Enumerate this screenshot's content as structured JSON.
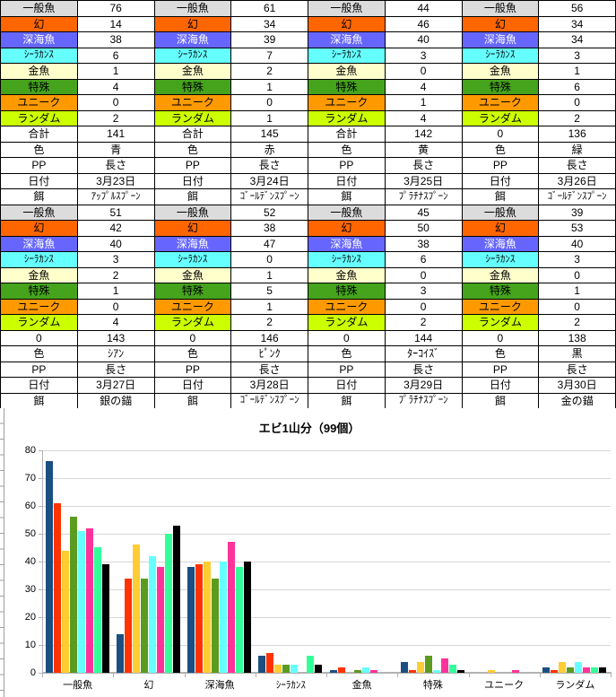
{
  "table": {
    "row_labels": [
      "一般魚",
      "幻",
      "深海魚",
      "ｼｰﾗｶﾝｽ",
      "金魚",
      "特殊",
      "ユニーク",
      "ランダム"
    ],
    "row_label_colors": [
      "#dcdcdc",
      "#ff6600",
      "#6666ff",
      "#66ffff",
      "#ffffcc",
      "#45a31c",
      "#ff9900",
      "#ccff00"
    ],
    "row_label_text_colors": [
      "#000000",
      "#000000",
      "#ffffff",
      "#000000",
      "#000000",
      "#000000",
      "#000000",
      "#000000"
    ],
    "color_label": "色",
    "pp_label": "PP",
    "date_label": "日付",
    "bait_label": "餌",
    "days": [
      {
        "counts": [
          76,
          14,
          38,
          6,
          1,
          4,
          0,
          2
        ],
        "total_label": "合計",
        "total": "141",
        "color_value": "青",
        "pp_value": "長さ",
        "date": "3月23日",
        "bait": "ｱｯﾌﾟﾙｽﾌﾟｰﾝ"
      },
      {
        "counts": [
          61,
          34,
          39,
          7,
          2,
          1,
          0,
          1
        ],
        "total_label": "合計",
        "total": "145",
        "color_value": "赤",
        "pp_value": "長さ",
        "date": "3月24日",
        "bait": "ｺﾞｰﾙﾃﾞﾝｽﾌﾟｰﾝ"
      },
      {
        "counts": [
          44,
          46,
          40,
          3,
          0,
          4,
          1,
          4
        ],
        "total_label": "合計",
        "total": "142",
        "color_value": "黄",
        "pp_value": "長さ",
        "date": "3月25日",
        "bait": "ﾌﾟﾗﾁﾅｽﾌﾟｰﾝ"
      },
      {
        "counts": [
          56,
          34,
          34,
          3,
          1,
          6,
          0,
          2
        ],
        "total_label": "0",
        "total": "136",
        "color_value": "緑",
        "pp_value": "長さ",
        "date": "3月26日",
        "bait": "ｺﾞｰﾙﾃﾞﾝｽﾌﾟｰﾝ"
      },
      {
        "counts": [
          51,
          42,
          40,
          3,
          2,
          1,
          0,
          4
        ],
        "total_label": "0",
        "total": "143",
        "color_value": "ｼｱﾝ",
        "pp_value": "長さ",
        "date": "3月27日",
        "bait": "銀の錨"
      },
      {
        "counts": [
          52,
          38,
          47,
          0,
          1,
          5,
          1,
          2
        ],
        "total_label": "0",
        "total": "146",
        "color_value": "ﾋﾟﾝｸ",
        "pp_value": "長さ",
        "date": "3月28日",
        "bait": "ｺﾞｰﾙﾃﾞﾝｽﾌﾟｰﾝ"
      },
      {
        "counts": [
          45,
          50,
          38,
          6,
          0,
          3,
          0,
          2
        ],
        "total_label": "0",
        "total": "144",
        "color_value": "ﾀｰｺｲｽﾞ",
        "pp_value": "長さ",
        "date": "3月29日",
        "bait": "ﾌﾟﾗﾁﾅｽﾌﾟｰﾝ"
      },
      {
        "counts": [
          39,
          53,
          40,
          3,
          0,
          1,
          0,
          2
        ],
        "total_label": "0",
        "total": "138",
        "color_value": "黒",
        "pp_value": "長さ",
        "date": "3月30日",
        "bait": "金の錨"
      }
    ]
  },
  "chart_data": {
    "type": "bar",
    "title": "エビ1山分（99個）",
    "categories": [
      "一般魚",
      "幻",
      "深海魚",
      "ｼｰﾗｶﾝｽ",
      "金魚",
      "特殊",
      "ユニーク",
      "ランダム"
    ],
    "series": [
      {
        "name": "3月23日",
        "color": "#1b4f81",
        "values": [
          76,
          14,
          38,
          6,
          1,
          4,
          0,
          2
        ]
      },
      {
        "name": "3月24日",
        "color": "#ff3300",
        "values": [
          61,
          34,
          39,
          7,
          2,
          1,
          0,
          1
        ]
      },
      {
        "name": "3月25日",
        "color": "#ffcc33",
        "values": [
          44,
          46,
          40,
          3,
          0,
          4,
          1,
          4
        ]
      },
      {
        "name": "3月26日",
        "color": "#5b9b1f",
        "values": [
          56,
          34,
          34,
          3,
          1,
          6,
          0,
          2
        ]
      },
      {
        "name": "3月27日",
        "color": "#66ffff",
        "values": [
          51,
          42,
          40,
          3,
          2,
          1,
          0,
          4
        ]
      },
      {
        "name": "3月28日",
        "color": "#ff3399",
        "values": [
          52,
          38,
          47,
          0,
          1,
          5,
          1,
          2
        ]
      },
      {
        "name": "3月29日",
        "color": "#33ff99",
        "values": [
          45,
          50,
          38,
          6,
          0,
          3,
          0,
          2
        ]
      },
      {
        "name": "3月30日",
        "color": "#000000",
        "values": [
          39,
          53,
          40,
          3,
          0,
          1,
          0,
          2
        ]
      }
    ],
    "ylim": [
      0,
      80
    ],
    "yticks": [
      0,
      10,
      20,
      30,
      40,
      50,
      60,
      70,
      80
    ],
    "grid": true,
    "legend": "none"
  }
}
